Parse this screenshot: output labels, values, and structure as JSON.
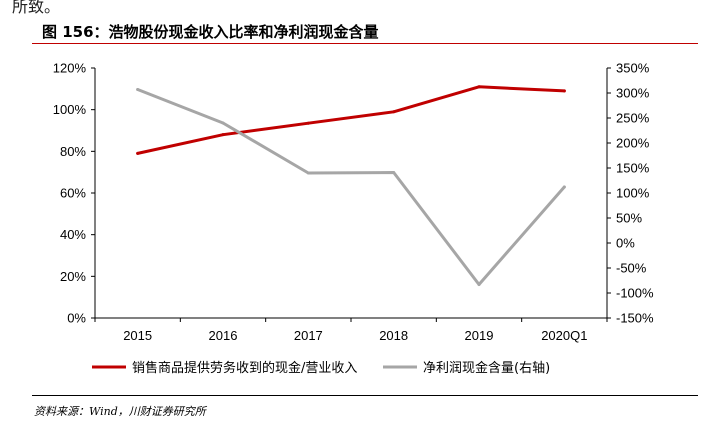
{
  "page": {
    "top_fragment": "所致。",
    "figure_title": "图 156：浩物股份现金收入比率和净利润现金含量",
    "source": "资料来源：Wind，川财证券研究所"
  },
  "chart_data": {
    "type": "line",
    "categories": [
      "2015",
      "2016",
      "2017",
      "2018",
      "2019",
      "2020Q1"
    ],
    "series": [
      {
        "name": "销售商品提供劳务收到的现金/营业收入",
        "axis": "left",
        "color": "#c00000",
        "values": [
          79,
          88,
          93.5,
          99,
          111,
          109
        ]
      },
      {
        "name": "净利润现金含量(右轴)",
        "axis": "right",
        "color": "#a6a6a6",
        "values": [
          307,
          240,
          140,
          141,
          -83,
          112
        ]
      }
    ],
    "y_left": {
      "min": 0,
      "max": 120,
      "step": 20,
      "ticks": [
        "0%",
        "20%",
        "40%",
        "60%",
        "80%",
        "100%",
        "120%"
      ]
    },
    "y_right": {
      "min": -150,
      "max": 350,
      "step": 50,
      "ticks": [
        "-150%",
        "-100%",
        "-50%",
        "0%",
        "50%",
        "100%",
        "150%",
        "200%",
        "250%",
        "300%",
        "350%"
      ]
    },
    "legend_position": "bottom",
    "grid": false
  }
}
